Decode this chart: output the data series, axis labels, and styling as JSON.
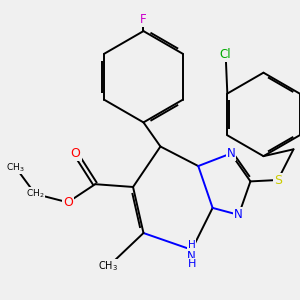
{
  "background_color": "#f0f0f0",
  "atom_colors": {
    "C": "#000000",
    "N": "#0000ff",
    "O": "#ff0000",
    "S": "#cccc00",
    "F": "#cc00cc",
    "Cl": "#00aa00",
    "H": "#0000ff"
  },
  "figsize": [
    3.0,
    3.0
  ],
  "dpi": 100,
  "lw": 1.4
}
